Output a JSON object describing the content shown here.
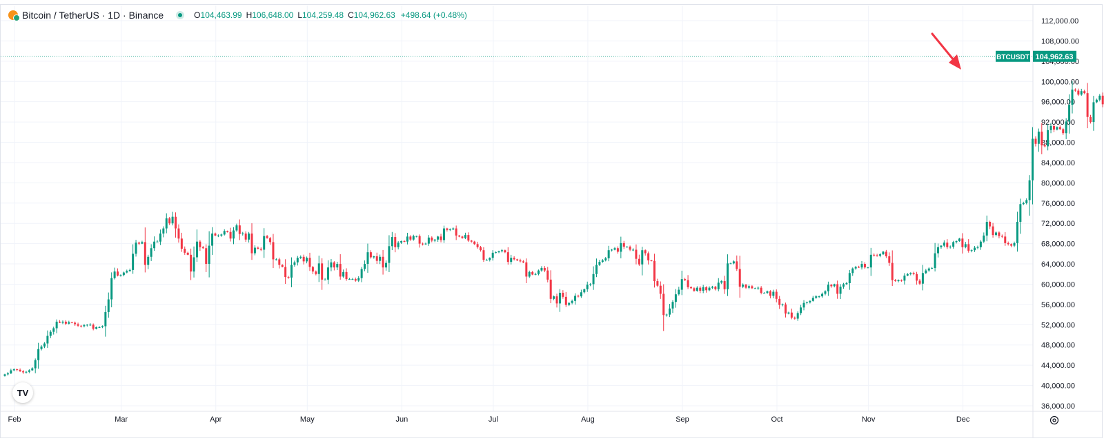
{
  "header": {
    "title": "Bitcoin / TetherUS · 1D · Binance",
    "open_key": "O",
    "open": "104,463.99",
    "high_key": "H",
    "high": "106,648.00",
    "low_key": "L",
    "low": "104,259.48",
    "close_key": "C",
    "close": "104,962.63",
    "change": "+498.64 (+0.48%)"
  },
  "price_tag": {
    "symbol": "BTCUSDT",
    "price": "104,962.63",
    "value": 104962.63
  },
  "logo_text": "TV",
  "colors": {
    "up": "#089981",
    "down": "#f23645",
    "grid": "#f0f3fa",
    "annotation": "#f23645"
  },
  "chart_data": {
    "type": "candlestick",
    "ylim": [
      34000,
      114000
    ],
    "y_ticks": [
      "112,000.00",
      "108,000.00",
      "104,000.00",
      "100,000.00",
      "96,000.00",
      "92,000.00",
      "88,000.00",
      "84,000.00",
      "80,000.00",
      "76,000.00",
      "72,000.00",
      "68,000.00",
      "64,000.00",
      "60,000.00",
      "56,000.00",
      "52,000.00",
      "48,000.00",
      "44,000.00",
      "40,000.00",
      "36,000.00"
    ],
    "x_ticks": [
      "Feb",
      "Mar",
      "Apr",
      "May",
      "Jun",
      "Jul",
      "Aug",
      "Sep",
      "Oct",
      "Nov",
      "Dec"
    ],
    "month_start_index": [
      0,
      35,
      66,
      96,
      127,
      157,
      188,
      219,
      250,
      280,
      311
    ],
    "close_series": [
      42200,
      42400,
      43000,
      43200,
      43100,
      42800,
      42600,
      42700,
      43000,
      43400,
      45000,
      47200,
      47700,
      48300,
      49800,
      50600,
      51300,
      52600,
      52400,
      52600,
      52200,
      52500,
      52400,
      52100,
      51800,
      51700,
      51900,
      52000,
      52000,
      51200,
      51500,
      51500,
      51700,
      54500,
      57000,
      61200,
      62500,
      61700,
      61800,
      62300,
      62600,
      62800,
      66000,
      68200,
      68000,
      68300,
      63800,
      65400,
      67100,
      68400,
      68400,
      70000,
      71000,
      73000,
      72000,
      73300,
      71000,
      69000,
      67000,
      66200,
      65800,
      62500,
      65300,
      68400,
      67300,
      67100,
      64000,
      67600,
      70000,
      69600,
      69600,
      69800,
      70500,
      70300,
      69000,
      70600,
      71600,
      69900,
      70000,
      68800,
      70000,
      66100,
      67200,
      67000,
      66800,
      69500,
      69100,
      68300,
      64900,
      64900,
      63800,
      63400,
      61400,
      61300,
      63800,
      64300,
      65200,
      65400,
      64500,
      65200,
      63400,
      62500,
      62000,
      64100,
      60900,
      60900,
      63300,
      64300,
      63300,
      64000,
      61500,
      62400,
      61000,
      61000,
      61000,
      60700,
      61200,
      63000,
      64000,
      66300,
      65300,
      65500,
      64600,
      65400,
      63300,
      64200,
      67500,
      69300,
      67300,
      68200,
      68500,
      68400,
      69400,
      68800,
      69500,
      69500,
      68000,
      67900,
      68000,
      69200,
      68600,
      68800,
      69400,
      68700,
      71000,
      70700,
      70800,
      71000,
      69600,
      69400,
      69100,
      69700,
      68600,
      68400,
      67900,
      67300,
      66700,
      64800,
      64800,
      65200,
      66200,
      66300,
      66500,
      66700,
      66300,
      64400,
      65200,
      64900,
      64700,
      64500,
      64300,
      61500,
      62400,
      61900,
      62000,
      62700,
      63200,
      62700,
      60900,
      57100,
      57600,
      56200,
      58300,
      57500,
      55900,
      56300,
      56700,
      57700,
      57600,
      58400,
      59000,
      59900,
      60000,
      62000,
      63800,
      64400,
      64700,
      65100,
      66700,
      66800,
      67100,
      66400,
      68100,
      67400,
      67400,
      66800,
      66800,
      65000,
      63900,
      66700,
      66100,
      64700,
      64600,
      60600,
      59700,
      58100,
      53900,
      54000,
      55200,
      56500,
      58000,
      58900,
      61000,
      60800,
      59400,
      59200,
      58700,
      59300,
      58700,
      59400,
      58800,
      59300,
      59500,
      59000,
      60300,
      60600,
      59000,
      64100,
      64100,
      64500,
      63000,
      59500,
      59900,
      59300,
      59600,
      59200,
      59200,
      59300,
      58300,
      58300,
      58600,
      57700,
      58500,
      57100,
      55900,
      56000,
      54200,
      54400,
      53400,
      53200,
      54300,
      55400,
      56300,
      56400,
      56700,
      57300,
      57600,
      57600,
      58100,
      58600,
      59900,
      59600,
      60000,
      58100,
      59500,
      60000,
      60200,
      62200,
      63100,
      63400,
      63300,
      64000,
      63300,
      63300,
      65800,
      65700,
      65600,
      65900,
      66400,
      65500,
      64200,
      60800,
      60600,
      60800,
      60700,
      61700,
      62000,
      62200,
      62000,
      60700,
      60100,
      62200,
      62700,
      63100,
      63200,
      66100,
      67300,
      67600,
      68200,
      67300,
      67400,
      68300,
      68500,
      69000,
      67300,
      67900,
      66600,
      66700,
      67200,
      67300,
      68400,
      69600,
      72300,
      71400,
      69700,
      70200,
      69500,
      69400,
      68100,
      67900,
      67600,
      68100,
      72300,
      75800,
      76000,
      76600,
      80500,
      88700,
      87700,
      90100,
      87400,
      87200,
      90400,
      91200,
      90500,
      91000,
      90600,
      89800,
      92100,
      95400,
      98400,
      98200,
      97400,
      98100,
      97700,
      93000,
      92000,
      95900,
      96400,
      97200,
      95500,
      97100,
      96800,
      96700,
      97100,
      95700,
      98300,
      100000,
      101100,
      99500,
      96900,
      98000,
      101100,
      96600,
      101000,
      100100,
      101000,
      102000,
      101400,
      101000,
      104500,
      104963
    ],
    "notes": "Daily BTCUSDT candles Feb–Dec (approx. close values read from chart); last candle O104,463.99 H106,648.00 L104,259.48 C104,962.63"
  }
}
